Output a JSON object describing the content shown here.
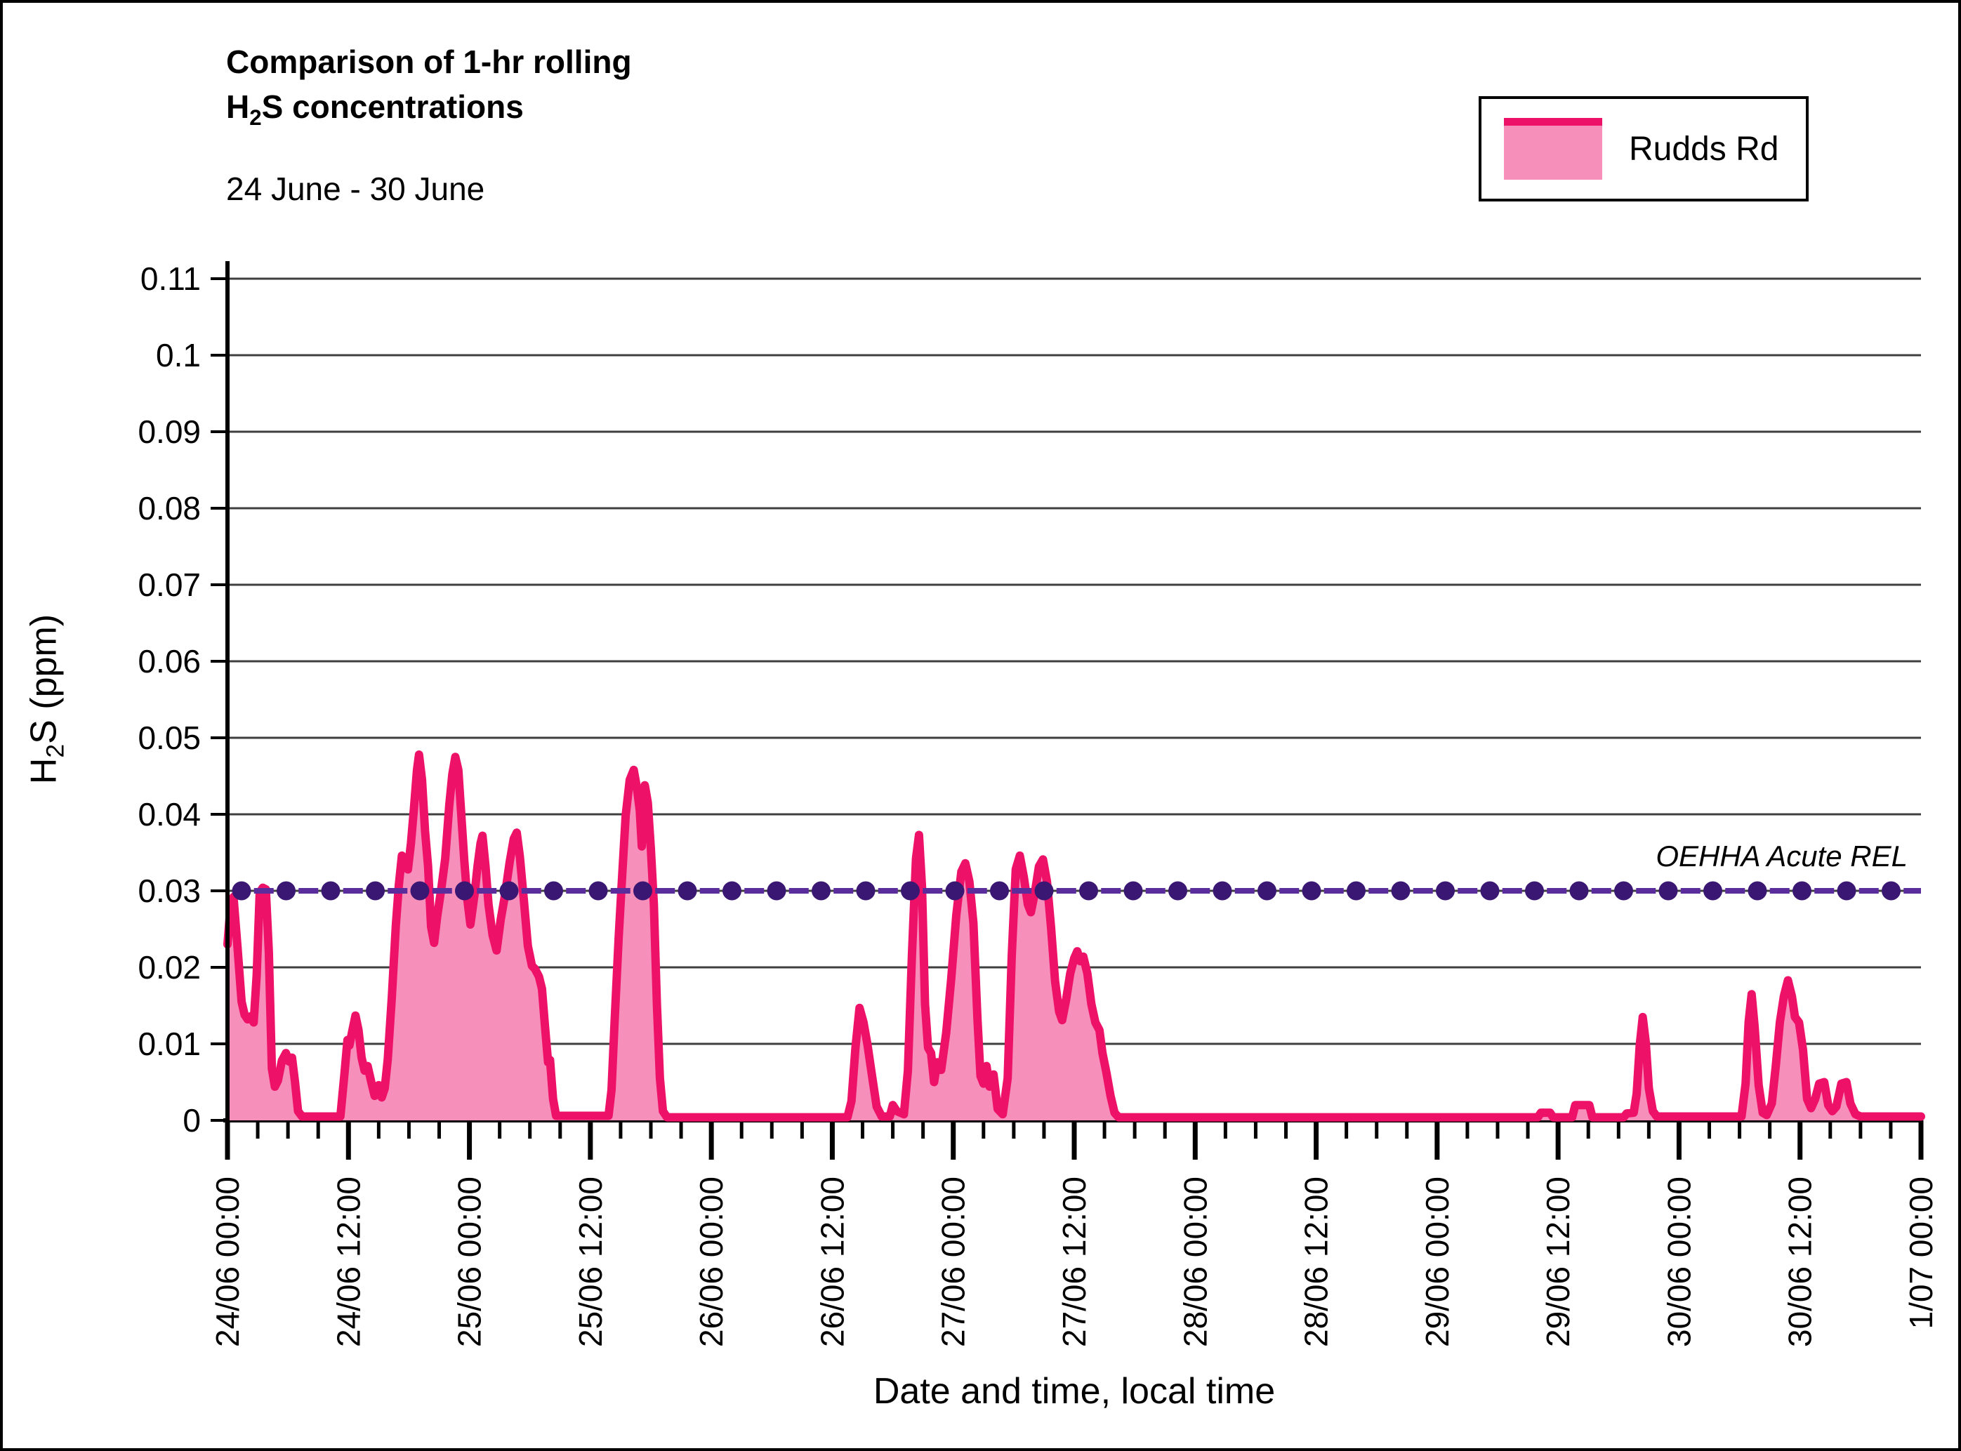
{
  "title": {
    "line1": "Comparison of 1-hr rolling",
    "line2_h": "H",
    "line2_sub": "2",
    "line2_rest": "S concentrations"
  },
  "subtitle": "24 June - 30 June",
  "legend": {
    "label": "Rudds Rd"
  },
  "axes": {
    "x_title": "Date and time, local time",
    "y_title_h": "H",
    "y_title_sub": "2",
    "y_title_rest": "S (ppm)",
    "x_tick_labels": [
      "24/06 00:00",
      "24/06 12:00",
      "25/06 00:00",
      "25/06 12:00",
      "26/06 00:00",
      "26/06 12:00",
      "27/06 00:00",
      "27/06 12:00",
      "28/06 00:00",
      "28/06 12:00",
      "29/06 00:00",
      "29/06 12:00",
      "30/06 00:00",
      "30/06 12:00",
      "1/07 00:00"
    ],
    "y_tick_labels": [
      "0",
      "0.01",
      "0.02",
      "0.03",
      "0.04",
      "0.05",
      "0.06",
      "0.07",
      "0.08",
      "0.09",
      "0.1",
      "0.11"
    ],
    "y_tick_values": [
      0,
      0.01,
      0.02,
      0.03,
      0.04,
      0.05,
      0.06,
      0.07,
      0.08,
      0.09,
      0.1,
      0.11
    ]
  },
  "rel_annotation": "OEHHA Acute REL",
  "colors": {
    "series_line": "#EE1168",
    "series_fill": "#F78FBB",
    "grid": "#3F3F3F",
    "axis": "#000000",
    "rel_dash": "#5B2C9B",
    "rel_marker": "#3A1772"
  },
  "chart_data": {
    "type": "area",
    "title": "Comparison of 1-hr rolling H2S concentrations",
    "subtitle": "24 June - 30 June",
    "xlabel": "Date and time, local time",
    "ylabel": "H2S (ppm)",
    "ylim": [
      0,
      0.11
    ],
    "grid": "horizontal",
    "legend_position": "top-right",
    "x_start_label": "24/06 00:00",
    "x_end_label": "1/07 00:00",
    "x_total_hours": 168,
    "x_major_tick_hours": 12,
    "x_minor_tick_hours": 3,
    "ref_line": {
      "label": "OEHHA Acute REL",
      "value": 0.03,
      "style": "dashed-with-markers"
    },
    "series": [
      {
        "name": "Rudds Rd",
        "unit": "ppm",
        "x_unit": "hours since 24/06 00:00",
        "points": [
          [
            0,
            0.023
          ],
          [
            0.3,
            0.028
          ],
          [
            0.6,
            0.0292
          ],
          [
            1,
            0.0225
          ],
          [
            1.4,
            0.0155
          ],
          [
            1.7,
            0.0138
          ],
          [
            2,
            0.0132
          ],
          [
            2.3,
            0.0136
          ],
          [
            2.6,
            0.0128
          ],
          [
            2.9,
            0.019
          ],
          [
            3.2,
            0.0298
          ],
          [
            3.5,
            0.0304
          ],
          [
            3.8,
            0.0302
          ],
          [
            4.1,
            0.022
          ],
          [
            4.4,
            0.0068
          ],
          [
            4.7,
            0.0044
          ],
          [
            5,
            0.0052
          ],
          [
            5.4,
            0.0078
          ],
          [
            5.8,
            0.0088
          ],
          [
            6.1,
            0.0077
          ],
          [
            6.4,
            0.0082
          ],
          [
            6.7,
            0.005
          ],
          [
            7,
            0.0012
          ],
          [
            7.4,
            0.0005
          ],
          [
            11.2,
            0.0005
          ],
          [
            11.6,
            0.006
          ],
          [
            11.9,
            0.0105
          ],
          [
            12.1,
            0.0098
          ],
          [
            12.4,
            0.0118
          ],
          [
            12.7,
            0.0137
          ],
          [
            13,
            0.0118
          ],
          [
            13.3,
            0.0082
          ],
          [
            13.6,
            0.0065
          ],
          [
            13.9,
            0.0071
          ],
          [
            14.3,
            0.0048
          ],
          [
            14.6,
            0.0032
          ],
          [
            15,
            0.0046
          ],
          [
            15.3,
            0.003
          ],
          [
            15.6,
            0.0042
          ],
          [
            15.9,
            0.008
          ],
          [
            16.3,
            0.016
          ],
          [
            16.7,
            0.0255
          ],
          [
            17,
            0.0308
          ],
          [
            17.3,
            0.0346
          ],
          [
            17.6,
            0.0338
          ],
          [
            17.9,
            0.0328
          ],
          [
            18.2,
            0.0362
          ],
          [
            18.5,
            0.0408
          ],
          [
            18.8,
            0.0458
          ],
          [
            19,
            0.0478
          ],
          [
            19.3,
            0.0445
          ],
          [
            19.6,
            0.0378
          ],
          [
            19.9,
            0.0332
          ],
          [
            20.2,
            0.0253
          ],
          [
            20.5,
            0.0232
          ],
          [
            20.8,
            0.0266
          ],
          [
            21.2,
            0.0302
          ],
          [
            21.6,
            0.0342
          ],
          [
            22,
            0.0412
          ],
          [
            22.3,
            0.0452
          ],
          [
            22.6,
            0.0475
          ],
          [
            22.9,
            0.0458
          ],
          [
            23.2,
            0.0398
          ],
          [
            23.5,
            0.0338
          ],
          [
            23.8,
            0.0288
          ],
          [
            24.1,
            0.0256
          ],
          [
            24.5,
            0.0295
          ],
          [
            24.8,
            0.0332
          ],
          [
            25.1,
            0.0362
          ],
          [
            25.3,
            0.0372
          ],
          [
            25.6,
            0.0332
          ],
          [
            25.9,
            0.0282
          ],
          [
            26.3,
            0.0242
          ],
          [
            26.7,
            0.0222
          ],
          [
            27.1,
            0.0262
          ],
          [
            27.5,
            0.0292
          ],
          [
            28,
            0.0338
          ],
          [
            28.4,
            0.0368
          ],
          [
            28.7,
            0.0376
          ],
          [
            29,
            0.0345
          ],
          [
            29.4,
            0.0288
          ],
          [
            29.8,
            0.0228
          ],
          [
            30.2,
            0.0202
          ],
          [
            30.5,
            0.0198
          ],
          [
            30.9,
            0.0188
          ],
          [
            31.2,
            0.0172
          ],
          [
            31.5,
            0.0122
          ],
          [
            31.8,
            0.0076
          ],
          [
            32,
            0.0079
          ],
          [
            32.3,
            0.0028
          ],
          [
            32.6,
            0.0006
          ],
          [
            37.8,
            0.0006
          ],
          [
            38.1,
            0.004
          ],
          [
            38.4,
            0.0128
          ],
          [
            38.8,
            0.0238
          ],
          [
            39.1,
            0.0308
          ],
          [
            39.5,
            0.0398
          ],
          [
            39.9,
            0.0445
          ],
          [
            40.3,
            0.0458
          ],
          [
            40.6,
            0.0436
          ],
          [
            40.9,
            0.0405
          ],
          [
            41.1,
            0.0358
          ],
          [
            41.4,
            0.0438
          ],
          [
            41.7,
            0.0415
          ],
          [
            42,
            0.0355
          ],
          [
            42.3,
            0.0282
          ],
          [
            42.6,
            0.0152
          ],
          [
            42.9,
            0.0055
          ],
          [
            43.2,
            0.0012
          ],
          [
            43.6,
            0.0004
          ],
          [
            61.5,
            0.0004
          ],
          [
            61.9,
            0.0025
          ],
          [
            62.3,
            0.0095
          ],
          [
            62.7,
            0.0147
          ],
          [
            63.1,
            0.0128
          ],
          [
            63.5,
            0.0098
          ],
          [
            63.9,
            0.0062
          ],
          [
            64.4,
            0.0018
          ],
          [
            64.9,
            0.0005
          ],
          [
            65.7,
            0.0005
          ],
          [
            66,
            0.002
          ],
          [
            66.4,
            0.0012
          ],
          [
            67.1,
            0.0008
          ],
          [
            67.5,
            0.0065
          ],
          [
            67.9,
            0.0215
          ],
          [
            68.3,
            0.0342
          ],
          [
            68.6,
            0.0373
          ],
          [
            68.9,
            0.0305
          ],
          [
            69.2,
            0.0152
          ],
          [
            69.5,
            0.0095
          ],
          [
            69.8,
            0.0088
          ],
          [
            70.1,
            0.005
          ],
          [
            70.4,
            0.0076
          ],
          [
            70.8,
            0.0066
          ],
          [
            71.3,
            0.0115
          ],
          [
            71.8,
            0.0185
          ],
          [
            72.3,
            0.0268
          ],
          [
            72.8,
            0.0325
          ],
          [
            73.2,
            0.0336
          ],
          [
            73.6,
            0.0312
          ],
          [
            74,
            0.0258
          ],
          [
            74.4,
            0.0132
          ],
          [
            74.7,
            0.0058
          ],
          [
            75,
            0.0048
          ],
          [
            75.3,
            0.0071
          ],
          [
            75.6,
            0.0044
          ],
          [
            76,
            0.006
          ],
          [
            76.4,
            0.0015
          ],
          [
            76.9,
            0.0008
          ],
          [
            77.4,
            0.0055
          ],
          [
            77.8,
            0.0215
          ],
          [
            78.2,
            0.0328
          ],
          [
            78.6,
            0.0346
          ],
          [
            79,
            0.0318
          ],
          [
            79.4,
            0.0282
          ],
          [
            79.7,
            0.0272
          ],
          [
            80.1,
            0.0298
          ],
          [
            80.5,
            0.0332
          ],
          [
            80.9,
            0.0341
          ],
          [
            81.3,
            0.0312
          ],
          [
            81.7,
            0.0252
          ],
          [
            82.1,
            0.0182
          ],
          [
            82.5,
            0.0142
          ],
          [
            82.8,
            0.0131
          ],
          [
            83.2,
            0.0158
          ],
          [
            83.6,
            0.0192
          ],
          [
            84,
            0.0212
          ],
          [
            84.3,
            0.0221
          ],
          [
            84.6,
            0.0208
          ],
          [
            84.9,
            0.0214
          ],
          [
            85.3,
            0.0192
          ],
          [
            85.7,
            0.0152
          ],
          [
            86.1,
            0.0128
          ],
          [
            86.5,
            0.0118
          ],
          [
            86.8,
            0.0088
          ],
          [
            87.2,
            0.0062
          ],
          [
            87.6,
            0.0032
          ],
          [
            88,
            0.001
          ],
          [
            88.4,
            0.0004
          ],
          [
            130,
            0.0004
          ],
          [
            130.3,
            0.001
          ],
          [
            131.2,
            0.001
          ],
          [
            131.5,
            0.0004
          ],
          [
            133.4,
            0.0004
          ],
          [
            133.7,
            0.002
          ],
          [
            135.1,
            0.002
          ],
          [
            135.4,
            0.0004
          ],
          [
            138.5,
            0.0004
          ],
          [
            138.8,
            0.0009
          ],
          [
            139.5,
            0.001
          ],
          [
            139.8,
            0.0035
          ],
          [
            140.1,
            0.0098
          ],
          [
            140.4,
            0.0135
          ],
          [
            140.7,
            0.0102
          ],
          [
            141,
            0.0042
          ],
          [
            141.4,
            0.0012
          ],
          [
            141.8,
            0.0005
          ],
          [
            150.2,
            0.0005
          ],
          [
            150.6,
            0.0048
          ],
          [
            150.9,
            0.0128
          ],
          [
            151.2,
            0.0165
          ],
          [
            151.5,
            0.0122
          ],
          [
            151.9,
            0.0046
          ],
          [
            152.3,
            0.001
          ],
          [
            152.7,
            0.0007
          ],
          [
            153.2,
            0.0022
          ],
          [
            153.6,
            0.0072
          ],
          [
            154,
            0.0128
          ],
          [
            154.4,
            0.0162
          ],
          [
            154.8,
            0.0183
          ],
          [
            155.2,
            0.0162
          ],
          [
            155.5,
            0.0135
          ],
          [
            155.9,
            0.0128
          ],
          [
            156.3,
            0.0092
          ],
          [
            156.7,
            0.0028
          ],
          [
            157.1,
            0.0016
          ],
          [
            157.5,
            0.0028
          ],
          [
            157.9,
            0.0048
          ],
          [
            158.4,
            0.005
          ],
          [
            158.8,
            0.002
          ],
          [
            159.2,
            0.0012
          ],
          [
            159.6,
            0.0018
          ],
          [
            160.1,
            0.0048
          ],
          [
            160.6,
            0.005
          ],
          [
            161,
            0.0022
          ],
          [
            161.5,
            0.0008
          ],
          [
            162,
            0.0005
          ],
          [
            168,
            0.0005
          ]
        ]
      }
    ]
  }
}
